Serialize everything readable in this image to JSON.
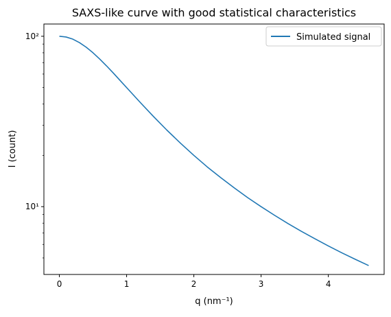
{
  "chart_data": {
    "type": "line",
    "title": "SAXS-like curve with good statistical characteristics",
    "xlabel": "q (nm⁻¹)",
    "ylabel": "I (count)",
    "yscale": "log",
    "xlim": [
      -0.23,
      4.83
    ],
    "ylim": [
      4.0,
      118.0
    ],
    "xticks": [
      0,
      1,
      2,
      3,
      4
    ],
    "xtick_labels": [
      "0",
      "1",
      "2",
      "3",
      "4"
    ],
    "yticks": [
      10,
      100
    ],
    "ytick_labels": [
      "10¹",
      "10²"
    ],
    "yminor_ticks": [
      5,
      6,
      7,
      8,
      9,
      20,
      30,
      40,
      50,
      60,
      70,
      80,
      90
    ],
    "grid": false,
    "legend": {
      "position": "top-right",
      "entries": [
        "Simulated signal"
      ]
    },
    "series": [
      {
        "name": "Simulated signal",
        "color": "#1f77b4",
        "x": [
          0,
          0.1,
          0.2,
          0.3,
          0.4,
          0.5,
          0.6,
          0.7,
          0.8,
          0.9,
          1.0,
          1.2,
          1.4,
          1.6,
          1.8,
          2.0,
          2.2,
          2.4,
          2.6,
          2.8,
          3.0,
          3.2,
          3.4,
          3.6,
          3.8,
          4.0,
          4.2,
          4.4,
          4.6
        ],
        "values": [
          100,
          99,
          96.2,
          91.7,
          86.2,
          80.0,
          73.5,
          67.1,
          61.0,
          55.2,
          50.0,
          41.0,
          33.8,
          28.1,
          23.6,
          20.0,
          17.1,
          14.8,
          12.9,
          11.3,
          10.0,
          8.9,
          7.96,
          7.16,
          6.48,
          5.88,
          5.36,
          4.91,
          4.51
        ]
      }
    ]
  }
}
